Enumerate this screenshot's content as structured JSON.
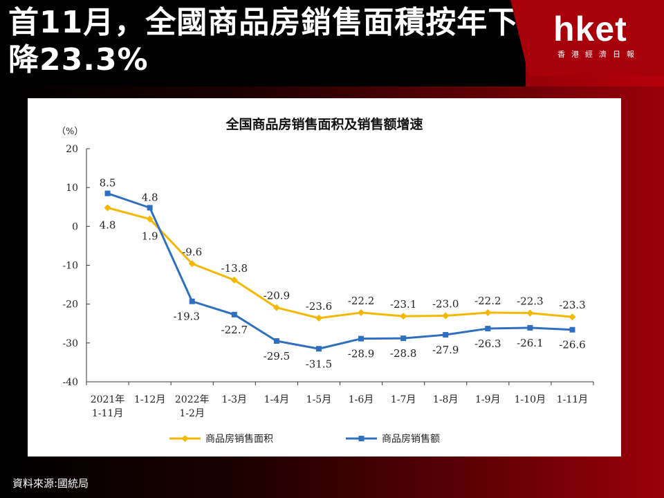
{
  "header": {
    "headline": "首11月，全國商品房銷售面積按年下降23.3%",
    "logo": "hket",
    "logo_sub": "香港經濟日報"
  },
  "source": "資料來源:國統局",
  "colors": {
    "area_series": "#f5b800",
    "sales_series": "#2e6fc0",
    "accent_red": "#a8000a"
  },
  "chart_data": {
    "type": "line",
    "title": "全国商品房销售面积及销售额增速",
    "ylabel": "（%）",
    "ylim": [
      -40,
      20
    ],
    "yticks": [
      20,
      10,
      0,
      -10,
      -20,
      -30,
      -40
    ],
    "categories": [
      "2021年\n1-11月",
      "1-12月",
      "2022年\n1-2月",
      "1-3月",
      "1-4月",
      "1-5月",
      "1-6月",
      "1-7月",
      "1-8月",
      "1-9月",
      "1-10月",
      "1-11月"
    ],
    "series": [
      {
        "name": "商品房销售面积",
        "values": [
          4.8,
          1.9,
          -9.6,
          -13.8,
          -20.9,
          -23.6,
          -22.2,
          -23.1,
          -23.0,
          -22.2,
          -22.3,
          -23.3
        ],
        "marker": "diamond"
      },
      {
        "name": "商品房销售额",
        "values": [
          8.5,
          4.8,
          -19.3,
          -22.7,
          -29.5,
          -31.5,
          -28.9,
          -28.8,
          -27.9,
          -26.3,
          -26.1,
          -26.6
        ],
        "marker": "square"
      }
    ],
    "legend": "bottom",
    "grid": false
  }
}
